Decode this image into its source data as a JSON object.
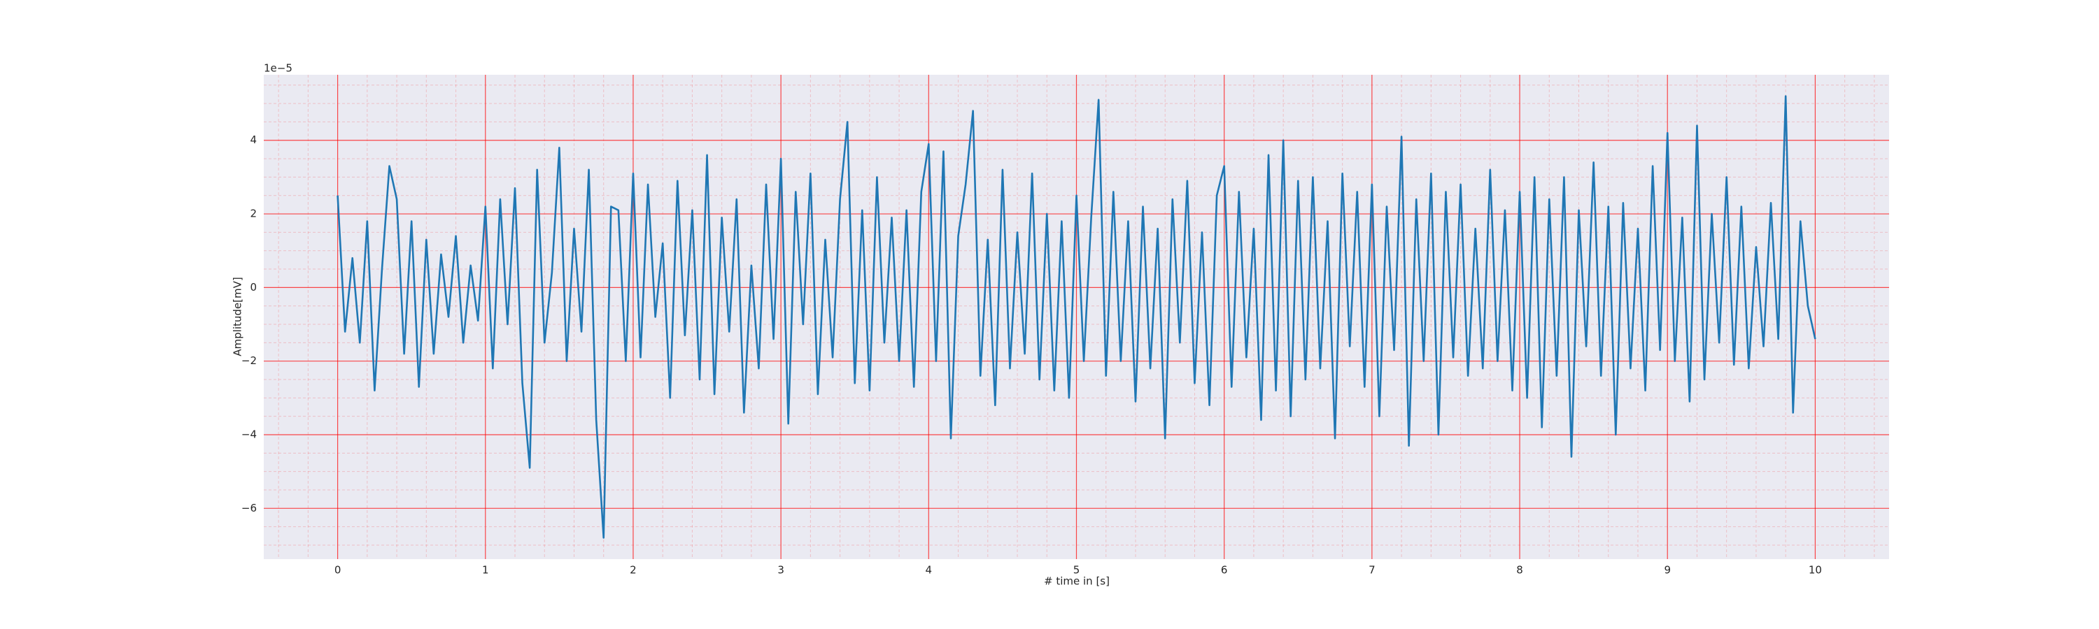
{
  "chart_data": {
    "type": "line",
    "xlabel": "# time in [s]",
    "ylabel": "Amplitude[mV]",
    "offset_text": "1e−5",
    "color": "#1f77b4",
    "background": "#eaeaf2",
    "grid": true,
    "grid_color": "#ff0000",
    "xlim": [
      -0.5,
      10.5
    ],
    "ylim": [
      -7.38,
      5.78
    ],
    "xticks": [
      0,
      1,
      2,
      3,
      4,
      5,
      6,
      7,
      8,
      9,
      10
    ],
    "yticks": [
      {
        "value": -6,
        "label": "−6"
      },
      {
        "value": -4,
        "label": "−4"
      },
      {
        "value": -2,
        "label": "−2"
      },
      0,
      2,
      4
    ],
    "xminorticks": [
      -0.4,
      -0.2,
      0.2,
      0.4,
      0.6,
      0.8,
      1.2,
      1.4,
      1.6,
      1.8,
      2.2,
      2.4,
      2.6,
      2.8,
      3.2,
      3.4,
      3.6,
      3.8,
      4.2,
      4.4,
      4.6,
      4.8,
      5.2,
      5.4,
      5.6,
      5.8,
      6.2,
      6.4,
      6.6,
      6.8,
      7.2,
      7.4,
      7.6,
      7.8,
      8.2,
      8.4,
      8.6,
      8.8,
      9.2,
      9.4,
      9.6,
      9.8,
      10.2,
      10.4
    ],
    "yminorticks": [
      -7,
      -6.5,
      -5.5,
      -5,
      -4.5,
      -3.5,
      -3,
      -2.5,
      -1.5,
      -1,
      -0.5,
      0.5,
      1,
      1.5,
      2.5,
      3,
      3.5,
      4.5,
      5,
      5.5
    ],
    "x": [
      0,
      0.05,
      0.1,
      0.15,
      0.2,
      0.25,
      0.3,
      0.35,
      0.4,
      0.45,
      0.5,
      0.55,
      0.6,
      0.65,
      0.7,
      0.75,
      0.8,
      0.85,
      0.9,
      0.95,
      1,
      1.05,
      1.1,
      1.15,
      1.2,
      1.25,
      1.3,
      1.35,
      1.4,
      1.45,
      1.5,
      1.55,
      1.6,
      1.65,
      1.7,
      1.75,
      1.8,
      1.85,
      1.9,
      1.95,
      2,
      2.05,
      2.1,
      2.15,
      2.2,
      2.25,
      2.3,
      2.35,
      2.4,
      2.45,
      2.5,
      2.55,
      2.6,
      2.65,
      2.7,
      2.75,
      2.8,
      2.85,
      2.9,
      2.95,
      3,
      3.05,
      3.1,
      3.15,
      3.2,
      3.25,
      3.3,
      3.35,
      3.4,
      3.45,
      3.5,
      3.55,
      3.6,
      3.65,
      3.7,
      3.75,
      3.8,
      3.85,
      3.9,
      3.95,
      4,
      4.05,
      4.1,
      4.15,
      4.2,
      4.25,
      4.3,
      4.35,
      4.4,
      4.45,
      4.5,
      4.55,
      4.6,
      4.65,
      4.7,
      4.75,
      4.8,
      4.85,
      4.9,
      4.95,
      5,
      5.05,
      5.1,
      5.15,
      5.2,
      5.25,
      5.3,
      5.35,
      5.4,
      5.45,
      5.5,
      5.55,
      5.6,
      5.65,
      5.7,
      5.75,
      5.8,
      5.85,
      5.9,
      5.95,
      6,
      6.05,
      6.1,
      6.15,
      6.2,
      6.25,
      6.3,
      6.35,
      6.4,
      6.45,
      6.5,
      6.55,
      6.6,
      6.65,
      6.7,
      6.75,
      6.8,
      6.85,
      6.9,
      6.95,
      7,
      7.05,
      7.1,
      7.15,
      7.2,
      7.25,
      7.3,
      7.35,
      7.4,
      7.45,
      7.5,
      7.55,
      7.6,
      7.65,
      7.7,
      7.75,
      7.8,
      7.85,
      7.9,
      7.95,
      8,
      8.05,
      8.1,
      8.15,
      8.2,
      8.25,
      8.3,
      8.35,
      8.4,
      8.45,
      8.5,
      8.55,
      8.6,
      8.65,
      8.7,
      8.75,
      8.8,
      8.85,
      8.9,
      8.95,
      9,
      9.05,
      9.1,
      9.15,
      9.2,
      9.25,
      9.3,
      9.35,
      9.4,
      9.45,
      9.5,
      9.55,
      9.6,
      9.65,
      9.7,
      9.75,
      9.8,
      9.85,
      9.9,
      9.95,
      10
    ],
    "values": [
      2.5,
      -1.2,
      0.8,
      -1.5,
      1.8,
      -2.8,
      0.5,
      3.3,
      2.4,
      -1.8,
      1.8,
      -2.7,
      1.3,
      -1.8,
      0.9,
      -0.8,
      1.4,
      -1.5,
      0.6,
      -0.9,
      2.2,
      -2.2,
      2.4,
      -1.0,
      2.7,
      -2.6,
      -4.9,
      3.2,
      -1.5,
      0.4,
      3.8,
      -2.0,
      1.6,
      -1.2,
      3.2,
      -3.6,
      -6.8,
      2.2,
      2.1,
      -2.0,
      3.1,
      -1.9,
      2.8,
      -0.8,
      1.2,
      -3.0,
      2.9,
      -1.3,
      2.1,
      -2.5,
      3.6,
      -2.9,
      1.9,
      -1.2,
      2.4,
      -3.4,
      0.6,
      -2.2,
      2.8,
      -1.4,
      3.5,
      -3.7,
      2.6,
      -1.0,
      3.1,
      -2.9,
      1.3,
      -1.9,
      2.4,
      4.5,
      -2.6,
      2.1,
      -2.8,
      3.0,
      -1.5,
      1.9,
      -2.0,
      2.1,
      -2.7,
      2.6,
      3.9,
      -2.0,
      3.7,
      -4.1,
      1.4,
      2.8,
      4.8,
      -2.4,
      1.3,
      -3.2,
      3.2,
      -2.2,
      1.5,
      -1.8,
      3.1,
      -2.5,
      2.0,
      -2.8,
      1.8,
      -3.0,
      2.5,
      -2.0,
      1.9,
      5.1,
      -2.4,
      2.6,
      -2.0,
      1.8,
      -3.1,
      2.2,
      -2.2,
      1.6,
      -4.1,
      2.4,
      -1.5,
      2.9,
      -2.6,
      1.5,
      -3.2,
      2.5,
      3.3,
      -2.7,
      2.6,
      -1.9,
      1.6,
      -3.6,
      3.6,
      -2.8,
      4.0,
      -3.5,
      2.9,
      -2.5,
      3.0,
      -2.2,
      1.8,
      -4.1,
      3.1,
      -1.6,
      2.6,
      -2.7,
      2.8,
      -3.5,
      2.2,
      -1.7,
      4.1,
      -4.3,
      2.4,
      -2.0,
      3.1,
      -4.0,
      2.6,
      -1.9,
      2.8,
      -2.4,
      1.6,
      -2.2,
      3.2,
      -2.0,
      2.1,
      -2.8,
      2.6,
      -3.0,
      3.0,
      -3.8,
      2.4,
      -2.4,
      3.0,
      -4.6,
      2.1,
      -1.6,
      3.4,
      -2.4,
      2.2,
      -4.0,
      2.3,
      -2.2,
      1.6,
      -2.8,
      3.3,
      -1.7,
      4.2,
      -2.0,
      1.9,
      -3.1,
      4.4,
      -2.5,
      2.0,
      -1.5,
      3.0,
      -2.1,
      2.2,
      -2.2,
      1.1,
      -1.6,
      2.3,
      -1.4,
      5.2,
      -3.4,
      1.8,
      -0.5,
      -1.4
    ]
  }
}
